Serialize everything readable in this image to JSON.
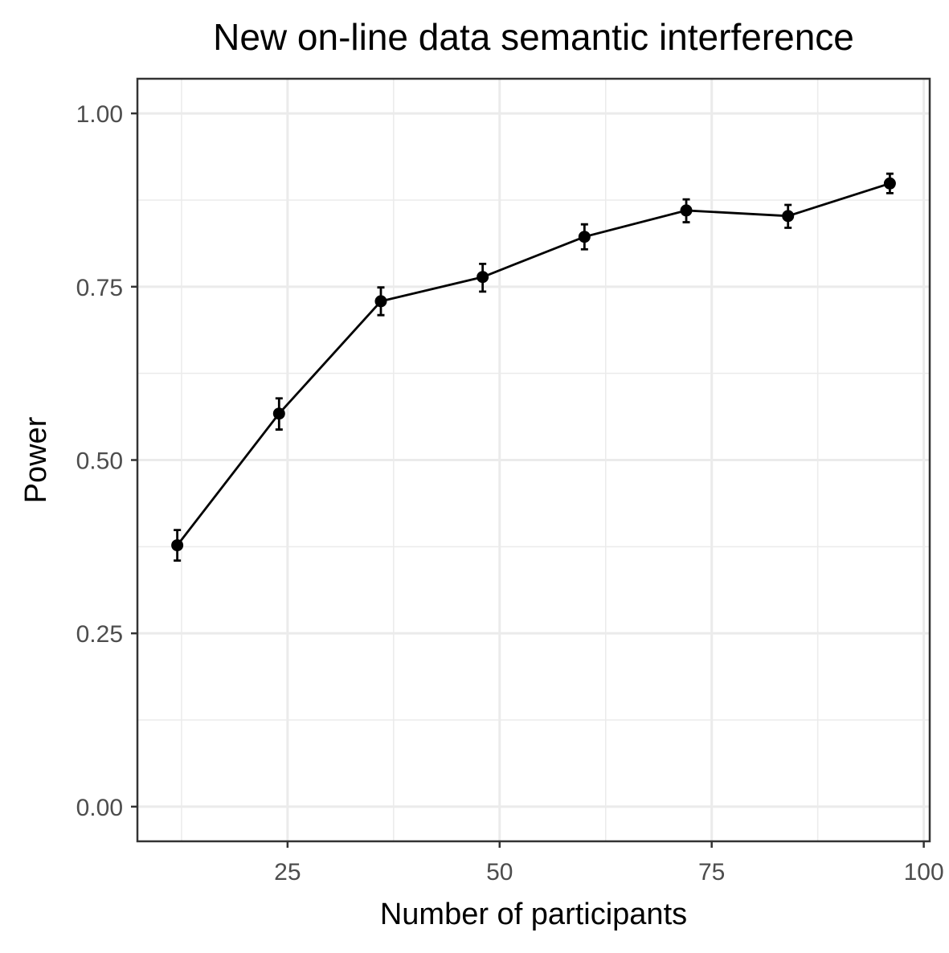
{
  "chart_data": {
    "type": "line",
    "title": "New on-line data semantic interference",
    "xlabel": "Number of participants",
    "ylabel": "Power",
    "xlim": [
      7.3,
      100.7
    ],
    "ylim": [
      -0.05,
      1.05
    ],
    "x_ticks": [
      25,
      50,
      75,
      100
    ],
    "x_tick_labels": [
      "25",
      "50",
      "75",
      "100"
    ],
    "x_minor_ticks": [
      12.5,
      37.5,
      62.5,
      87.5
    ],
    "y_ticks": [
      0,
      0.25,
      0.5,
      0.75,
      1
    ],
    "y_tick_labels": [
      "0.00",
      "0.25",
      "0.50",
      "0.75",
      "1.00"
    ],
    "y_minor_ticks": [
      0.125,
      0.375,
      0.625,
      0.875
    ],
    "grid": true,
    "legend": "none",
    "series": [
      {
        "color": "#000000",
        "x": [
          12,
          24,
          36,
          48,
          60,
          72,
          84,
          96
        ],
        "y": [
          0.377,
          0.567,
          0.729,
          0.764,
          0.822,
          0.86,
          0.852,
          0.899
        ],
        "err_low": [
          0.355,
          0.544,
          0.709,
          0.743,
          0.804,
          0.843,
          0.835,
          0.885
        ],
        "err_high": [
          0.399,
          0.589,
          0.749,
          0.783,
          0.84,
          0.876,
          0.868,
          0.913
        ]
      }
    ]
  }
}
